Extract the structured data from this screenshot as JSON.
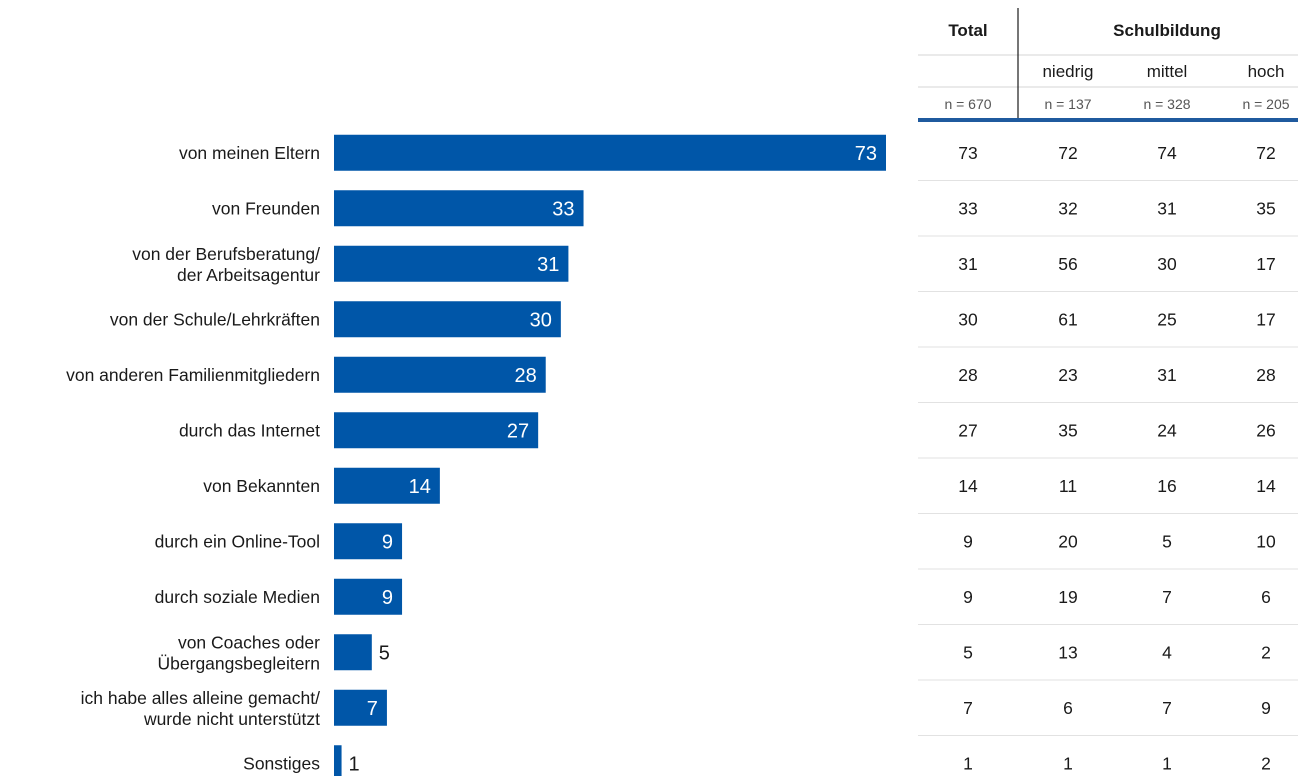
{
  "chart_data": {
    "type": "bar",
    "orientation": "horizontal",
    "categories": [
      [
        "von meinen Eltern"
      ],
      [
        "von Freunden"
      ],
      [
        "von der Berufsberatung/",
        "der Arbeitsagentur"
      ],
      [
        "von der Schule/Lehrkräften"
      ],
      [
        "von anderen Familienmitgliedern"
      ],
      [
        "durch das Internet"
      ],
      [
        "von Bekannten"
      ],
      [
        "durch ein Online-Tool"
      ],
      [
        "durch soziale Medien"
      ],
      [
        "von Coaches oder",
        "Übergangsbegleitern"
      ],
      [
        "ich habe alles alleine gemacht/",
        "wurde nicht unterstützt"
      ],
      [
        "Sonstiges"
      ]
    ],
    "values": [
      73,
      33,
      31,
      30,
      28,
      27,
      14,
      9,
      9,
      5,
      7,
      1
    ],
    "bar_color": "#0056a8",
    "label_inside_color": "#ffffff",
    "label_outside_color": "#1a1a1a",
    "xlim": [
      0,
      73
    ],
    "grid": false,
    "legend": "none"
  },
  "table": {
    "header_total": "Total",
    "header_group": "Schulbildung",
    "subheaders": [
      "",
      "niedrig",
      "mittel",
      "hoch"
    ],
    "n_labels": [
      "n = 670",
      "n = 137",
      "n = 328",
      "n = 205"
    ],
    "rows": [
      [
        "73",
        "72",
        "74",
        "72"
      ],
      [
        "33",
        "32",
        "31",
        "35"
      ],
      [
        "31",
        "56",
        "30",
        "17"
      ],
      [
        "30",
        "61",
        "25",
        "17"
      ],
      [
        "28",
        "23",
        "31",
        "28"
      ],
      [
        "27",
        "35",
        "24",
        "26"
      ],
      [
        "14",
        "11",
        "16",
        "14"
      ],
      [
        "9",
        "20",
        "5",
        "10"
      ],
      [
        "9",
        "19",
        "7",
        "6"
      ],
      [
        "5",
        "13",
        "4",
        "2"
      ],
      [
        "7",
        "6",
        "7",
        "9"
      ],
      [
        "1",
        "1",
        "1",
        "2"
      ]
    ],
    "accent_color": "#1f5a9e",
    "separator_color": "#e2e2e2"
  }
}
